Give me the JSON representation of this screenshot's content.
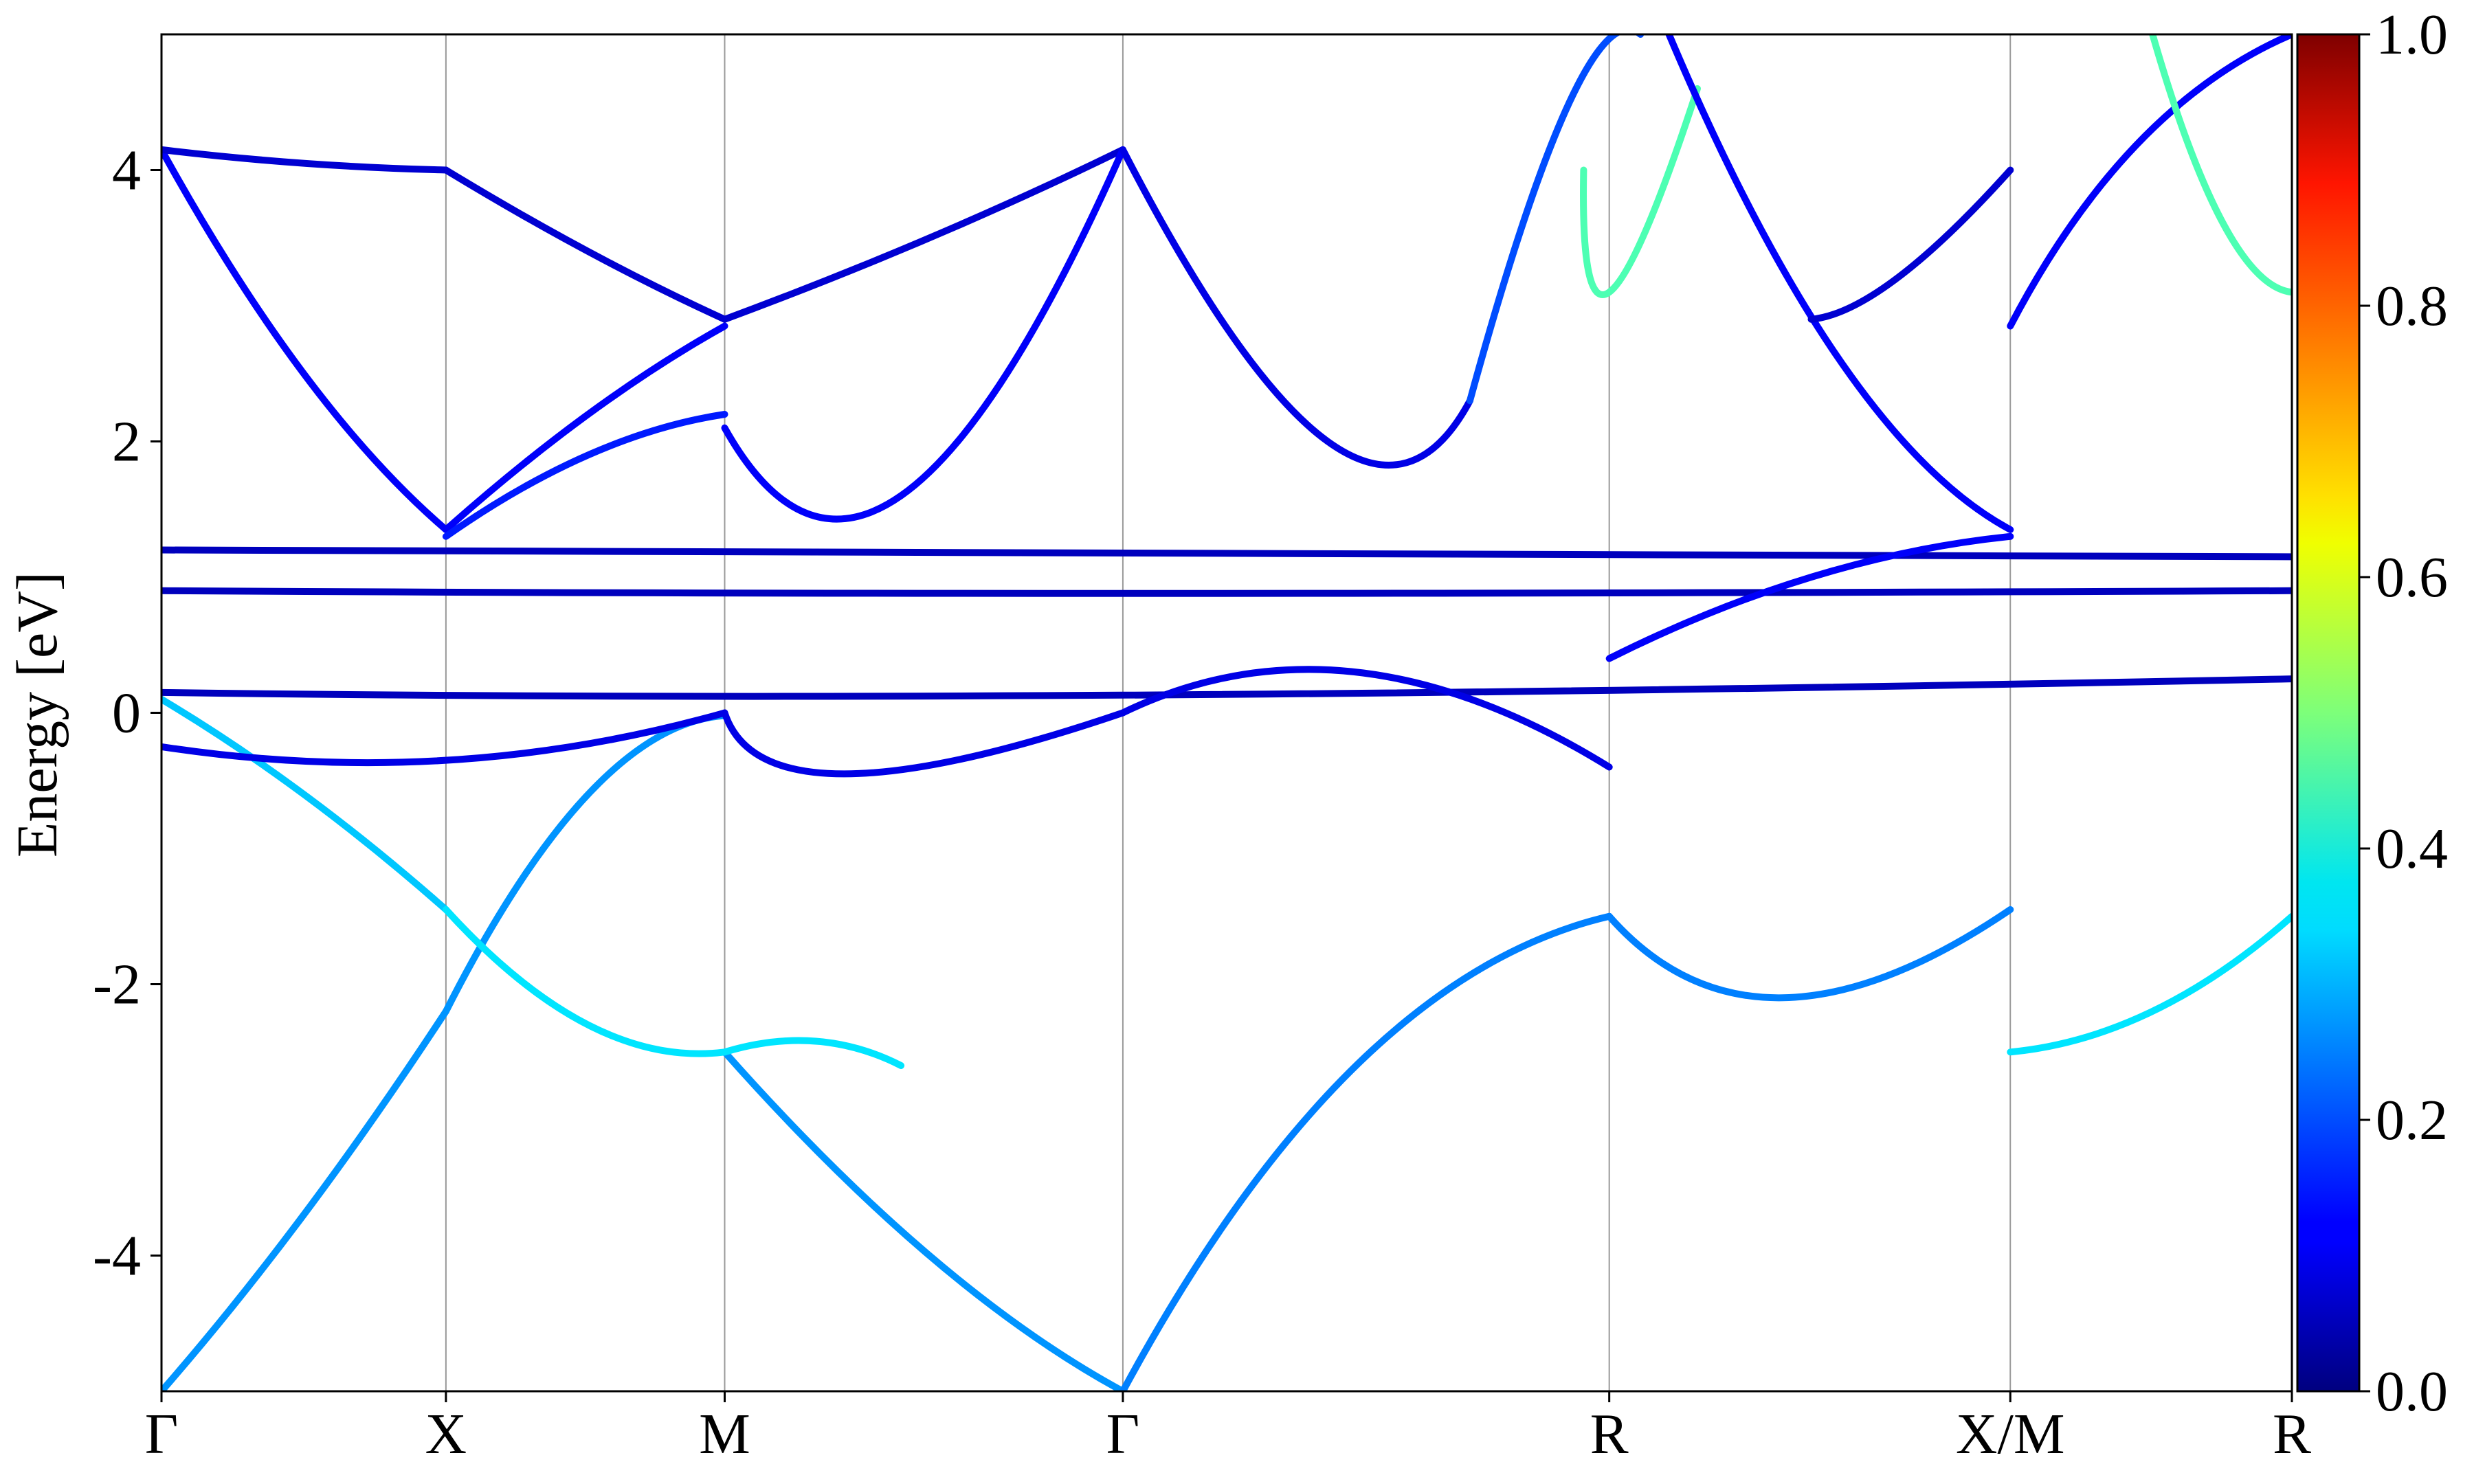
{
  "chart_data": {
    "type": "line",
    "title": "",
    "xlabel": "",
    "ylabel": "Energy [eV]",
    "ylim": [
      -5,
      5
    ],
    "grid": "vertical lines at high-symmetry points",
    "kpoints": [
      {
        "label": "Γ",
        "x": 0.0
      },
      {
        "label": "X",
        "x": 1.0
      },
      {
        "label": "M",
        "x": 1.98
      },
      {
        "label": "Γ",
        "x": 3.38
      },
      {
        "label": "R",
        "x": 5.09
      },
      {
        "label": "X/M",
        "x": 6.5
      },
      {
        "label": "R",
        "x": 7.49
      }
    ],
    "y_ticks": [
      {
        "value": 4,
        "label": "4"
      },
      {
        "value": 2,
        "label": "2"
      },
      {
        "value": 0,
        "label": "0"
      },
      {
        "value": -2,
        "label": "-2"
      },
      {
        "value": -4,
        "label": "-4"
      }
    ],
    "colorbar": {
      "colormap": "jet",
      "range": [
        0.0,
        1.0
      ],
      "ticks": [
        "0.0",
        "0.2",
        "0.4",
        "0.6",
        "0.8",
        "1.0"
      ]
    },
    "series": [
      {
        "weight": 0.27,
        "x": [
          0.0,
          0.5,
          1.0
        ],
        "y": [
          -5.0,
          -3.7,
          -2.2
        ]
      },
      {
        "weight": 0.27,
        "x": [
          1.0,
          1.5,
          1.98
        ],
        "y": [
          -2.2,
          -0.6,
          -0.02
        ]
      },
      {
        "weight": 0.27,
        "x": [
          1.98,
          2.7,
          3.38
        ],
        "y": [
          -2.5,
          -4.0,
          -5.0
        ]
      },
      {
        "weight": 0.25,
        "x": [
          3.38,
          4.2,
          5.09
        ],
        "y": [
          -5.0,
          -2.6,
          -1.5
        ]
      },
      {
        "weight": 0.32,
        "x": [
          0.0,
          0.5,
          1.0
        ],
        "y": [
          0.1,
          -0.6,
          -1.45
        ]
      },
      {
        "weight": 0.35,
        "x": [
          1.0,
          1.5,
          1.98
        ],
        "y": [
          -1.45,
          -2.3,
          -2.5
        ]
      },
      {
        "weight": 0.35,
        "x": [
          1.98,
          2.3,
          2.6
        ],
        "y": [
          -2.5,
          -2.42,
          -2.6
        ]
      },
      {
        "weight": 0.25,
        "x": [
          5.09,
          5.7,
          6.5
        ],
        "y": [
          -1.5,
          -2.1,
          -1.45
        ]
      },
      {
        "weight": 0.35,
        "x": [
          6.5,
          7.0,
          7.49
        ],
        "y": [
          -2.5,
          -2.2,
          -1.5
        ]
      },
      {
        "weight": 0.12,
        "x": [
          0.0,
          0.5,
          1.0
        ],
        "y": [
          4.15,
          2.5,
          1.35
        ]
      },
      {
        "weight": 0.12,
        "x": [
          1.0,
          1.5,
          1.98
        ],
        "y": [
          1.35,
          2.2,
          2.85
        ]
      },
      {
        "weight": 0.08,
        "x": [
          0.0,
          0.5,
          1.0
        ],
        "y": [
          4.15,
          4.05,
          4.0
        ]
      },
      {
        "weight": 0.08,
        "x": [
          1.0,
          1.5,
          1.98
        ],
        "y": [
          4.0,
          3.4,
          2.9
        ]
      },
      {
        "weight": 0.08,
        "x": [
          1.98,
          2.7,
          3.38
        ],
        "y": [
          2.9,
          3.5,
          4.15
        ]
      },
      {
        "weight": 0.15,
        "x": [
          1.0,
          1.5,
          1.98
        ],
        "y": [
          1.3,
          1.9,
          2.2
        ]
      },
      {
        "weight": 0.12,
        "x": [
          1.98,
          2.6,
          3.38
        ],
        "y": [
          2.1,
          1.6,
          4.15
        ]
      },
      {
        "weight": 0.1,
        "x": [
          3.38,
          4.1,
          4.6
        ],
        "y": [
          4.15,
          2.0,
          2.3
        ]
      },
      {
        "weight": 0.2,
        "x": [
          4.6,
          4.95,
          5.2
        ],
        "y": [
          2.3,
          4.5,
          5.0
        ]
      },
      {
        "weight": 0.45,
        "x": [
          5.0,
          5.09,
          5.4
        ],
        "y": [
          4.0,
          3.1,
          4.6
        ]
      },
      {
        "weight": 0.12,
        "x": [
          5.3,
          5.9,
          6.5
        ],
        "y": [
          5.0,
          2.6,
          1.35
        ]
      },
      {
        "weight": 0.08,
        "x": [
          5.8,
          6.1,
          6.5
        ],
        "y": [
          2.9,
          3.2,
          4.0
        ]
      },
      {
        "weight": 0.12,
        "x": [
          6.5,
          6.95,
          7.49
        ],
        "y": [
          2.85,
          4.2,
          5.0
        ]
      },
      {
        "weight": 0.45,
        "x": [
          7.0,
          7.25,
          7.49
        ],
        "y": [
          5.0,
          3.6,
          3.1
        ]
      },
      {
        "weight": 0.06,
        "x": [
          0.0,
          3.38,
          7.49
        ],
        "y": [
          1.2,
          1.18,
          1.15
        ]
      },
      {
        "weight": 0.06,
        "x": [
          0.0,
          3.38,
          7.49
        ],
        "y": [
          0.9,
          0.88,
          0.9
        ]
      },
      {
        "weight": 0.06,
        "x": [
          0.0,
          3.38,
          7.49
        ],
        "y": [
          0.15,
          0.13,
          0.25
        ]
      },
      {
        "weight": 0.1,
        "x": [
          0.0,
          1.0,
          1.98
        ],
        "y": [
          -0.25,
          -0.35,
          0.0
        ]
      },
      {
        "weight": 0.1,
        "x": [
          1.98,
          2.4,
          3.38
        ],
        "y": [
          0.0,
          -0.45,
          0.0
        ]
      },
      {
        "weight": 0.1,
        "x": [
          3.38,
          4.2,
          5.09
        ],
        "y": [
          0.0,
          0.3,
          -0.4
        ]
      },
      {
        "weight": 0.12,
        "x": [
          5.09,
          5.8,
          6.5
        ],
        "y": [
          0.4,
          1.0,
          1.3
        ]
      }
    ]
  }
}
